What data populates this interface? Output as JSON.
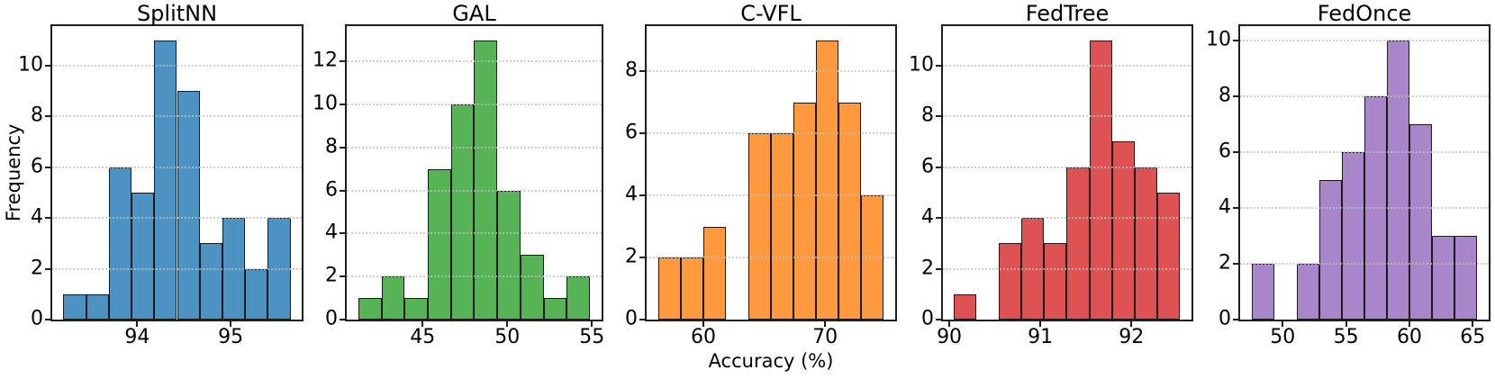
{
  "figure": {
    "xlabel": "Accuracy (%)",
    "ylabel": "Frequency"
  },
  "chart_data": [
    {
      "type": "bar",
      "subtype": "histogram",
      "title": "SplitNN",
      "series_color": "#4C92C3",
      "edge_color": "#1A1A1A",
      "bin_start": 93.21,
      "bin_width": 0.243,
      "counts": [
        1,
        1,
        6,
        5,
        11,
        9,
        3,
        4,
        2,
        4
      ],
      "xlim": [
        93.09,
        95.76
      ],
      "xticks": [
        94,
        95
      ],
      "ylim": [
        0,
        11.55
      ],
      "yticks": [
        0,
        2,
        4,
        6,
        8,
        10
      ],
      "grid": "horizontal-dotted"
    },
    {
      "type": "bar",
      "subtype": "histogram",
      "title": "GAL",
      "series_color": "#56B356",
      "edge_color": "#1A1A1A",
      "bin_start": 41.2,
      "bin_width": 1.368,
      "counts": [
        1,
        2,
        1,
        7,
        10,
        13,
        6,
        3,
        1,
        2
      ],
      "xlim": [
        40.52,
        55.57
      ],
      "xticks": [
        45,
        50,
        55
      ],
      "ylim": [
        0,
        13.65
      ],
      "yticks": [
        0,
        2,
        4,
        6,
        8,
        10,
        12
      ],
      "grid": "horizontal-dotted"
    },
    {
      "type": "bar",
      "subtype": "histogram",
      "title": "C-VFL",
      "series_color": "#FF993E",
      "edge_color": "#1A1A1A",
      "bin_start": 56.26,
      "bin_width": 1.858,
      "counts": [
        2,
        2,
        3,
        0,
        6,
        6,
        7,
        9,
        7,
        4
      ],
      "xlim": [
        55.33,
        75.77
      ],
      "xticks": [
        60,
        70
      ],
      "ylim": [
        0,
        9.45
      ],
      "yticks": [
        0,
        2,
        4,
        6,
        8
      ],
      "grid": "horizontal-dotted"
    },
    {
      "type": "bar",
      "subtype": "histogram",
      "title": "FedTree",
      "series_color": "#DE5253",
      "edge_color": "#1A1A1A",
      "bin_start": 90.05,
      "bin_width": 0.248,
      "counts": [
        1,
        0,
        3,
        4,
        3,
        6,
        11,
        7,
        6,
        5
      ],
      "xlim": [
        89.93,
        92.66
      ],
      "xticks": [
        90,
        91,
        92
      ],
      "ylim": [
        0,
        11.55
      ],
      "yticks": [
        0,
        2,
        4,
        6,
        8,
        10
      ],
      "grid": "horizontal-dotted"
    },
    {
      "type": "bar",
      "subtype": "histogram",
      "title": "FedOnce",
      "series_color": "#A985CA",
      "edge_color": "#1A1A1A",
      "bin_start": 47.53,
      "bin_width": 1.784,
      "counts": [
        2,
        0,
        2,
        5,
        6,
        8,
        10,
        7,
        3,
        3
      ],
      "xlim": [
        46.64,
        66.26
      ],
      "xticks": [
        50,
        55,
        60,
        65
      ],
      "ylim": [
        0,
        10.5
      ],
      "yticks": [
        0,
        2,
        4,
        6,
        8,
        10
      ],
      "grid": "horizontal-dotted"
    }
  ]
}
